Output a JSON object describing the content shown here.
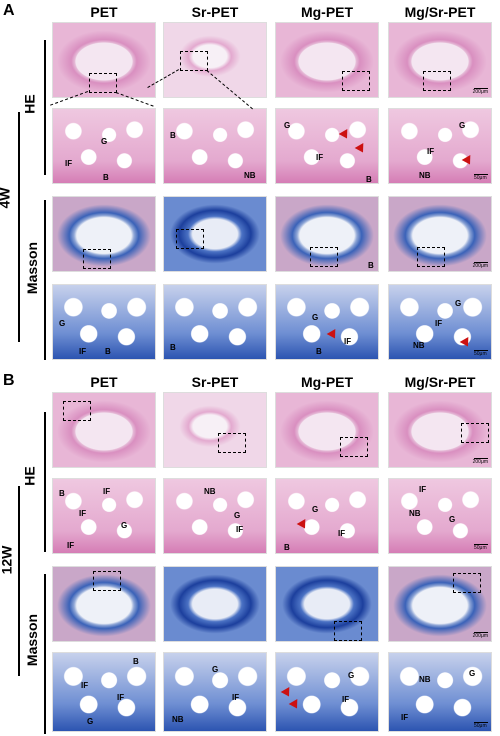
{
  "panels": [
    {
      "letter": "A",
      "timepoint": "4W",
      "columns": [
        "PET",
        "Sr-PET",
        "Mg-PET",
        "Mg/Sr-PET"
      ],
      "stains": [
        "HE",
        "Masson"
      ],
      "he_high_labels": [
        [
          "G",
          "IF",
          "B"
        ],
        [
          "B",
          "NB"
        ],
        [
          "G",
          "IF",
          "B"
        ],
        [
          "G",
          "IF",
          "NB"
        ]
      ],
      "ms_high_labels": [
        [
          "G",
          "IF",
          "B"
        ],
        [
          "B"
        ],
        [
          "G",
          "IF",
          "B"
        ],
        [
          "G",
          "IF",
          "NB"
        ]
      ],
      "ms_low_labels": [
        [],
        [],
        [
          "B"
        ],
        []
      ]
    },
    {
      "letter": "B",
      "timepoint": "12W",
      "columns": [
        "PET",
        "Sr-PET",
        "Mg-PET",
        "Mg/Sr-PET"
      ],
      "stains": [
        "HE",
        "Masson"
      ],
      "he_high_labels": [
        [
          "B",
          "IF",
          "IF",
          "G",
          "IF"
        ],
        [
          "NB",
          "G",
          "IF"
        ],
        [
          "G",
          "IF",
          "B"
        ],
        [
          "IF",
          "NB",
          "G"
        ]
      ],
      "ms_high_labels": [
        [
          "B",
          "IF",
          "IF",
          "G"
        ],
        [
          "G",
          "IF",
          "NB"
        ],
        [
          "G",
          "IF"
        ],
        [
          "NB",
          "G",
          "IF"
        ]
      ]
    }
  ],
  "scale_bars": {
    "low": "200μm",
    "high": "50μm"
  }
}
